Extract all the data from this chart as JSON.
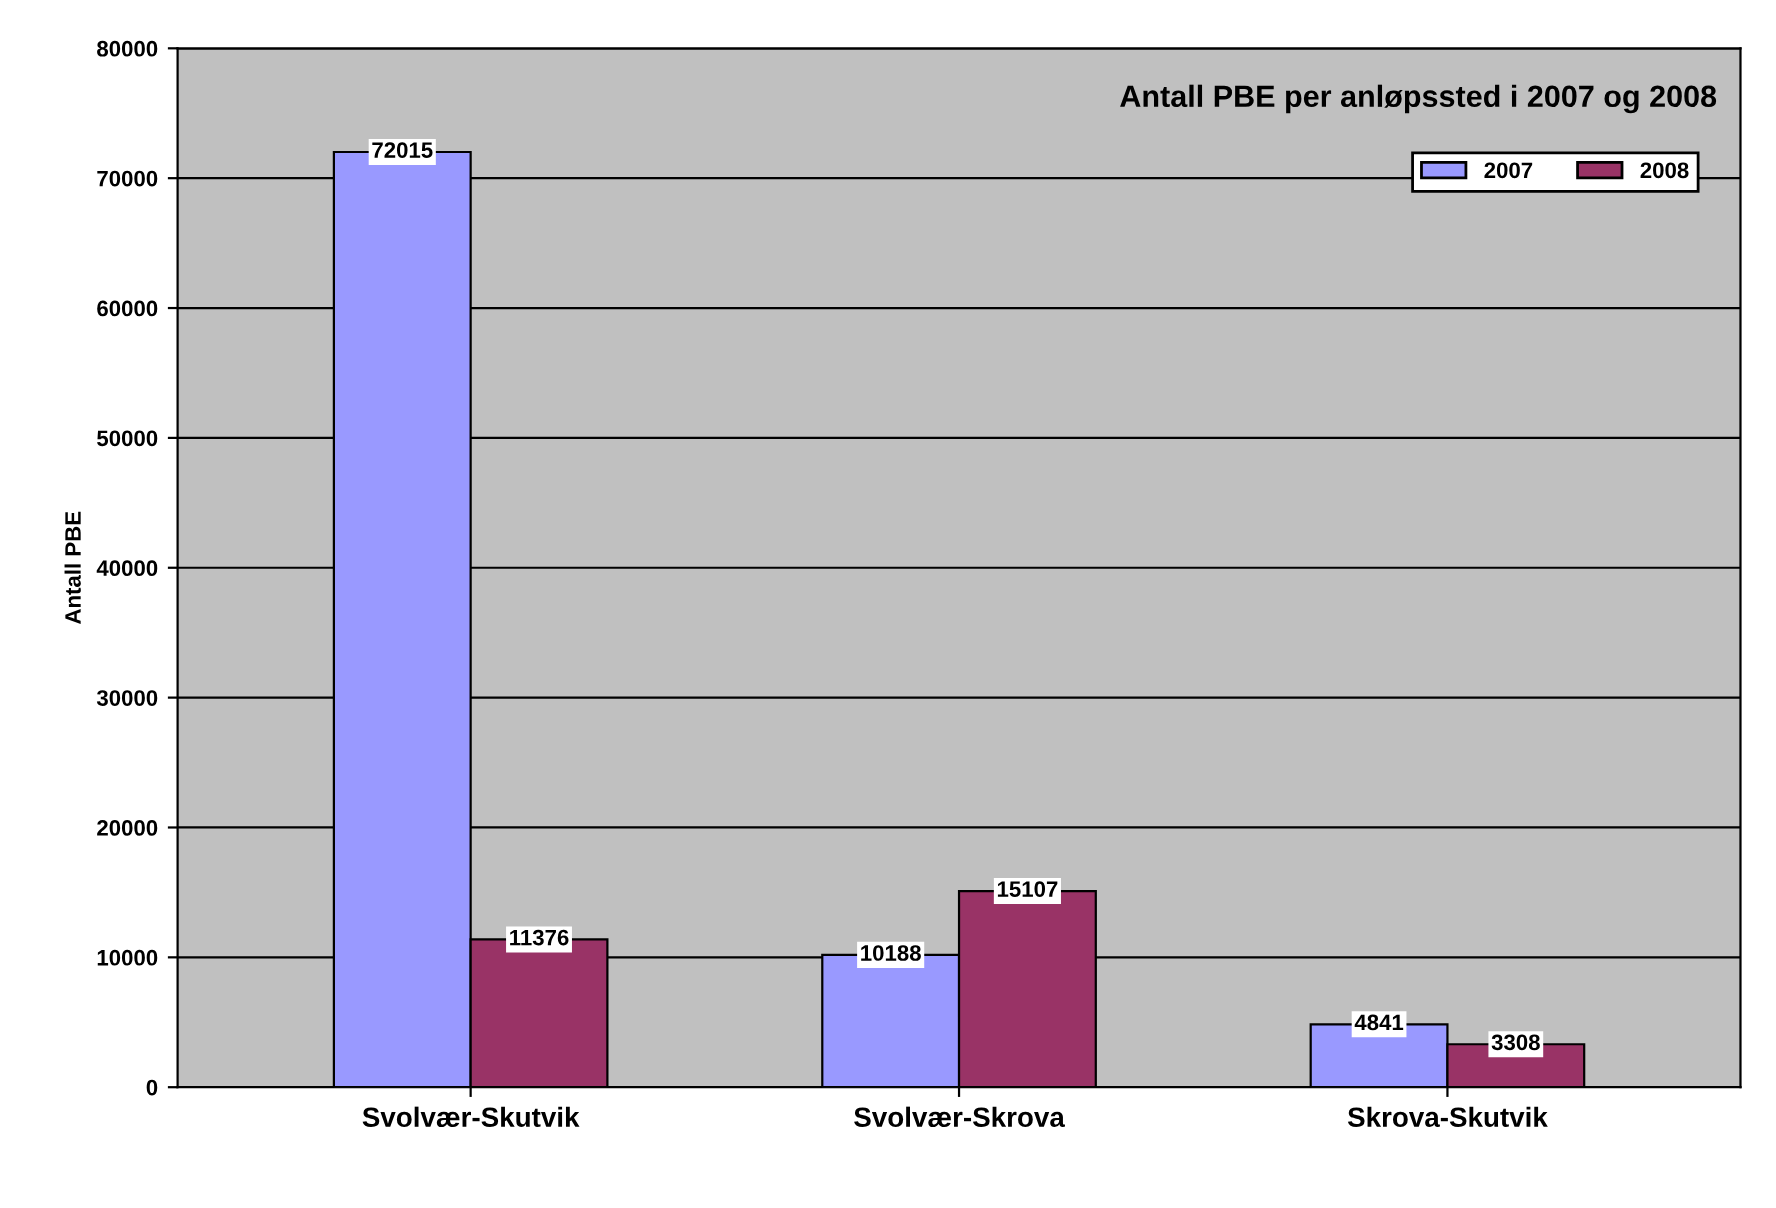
{
  "chart_data": {
    "type": "bar",
    "title": "Antall PBE per anløpssted i 2007 og 2008",
    "ylabel": "Antall PBE",
    "categories": [
      "Svolvær-Skutvik",
      "Svolvær-Skrova",
      "Skrova-Skutvik"
    ],
    "series": [
      {
        "name": "2007",
        "color": "#9999ff",
        "values": [
          72015,
          10188,
          4841
        ]
      },
      {
        "name": "2008",
        "color": "#993366",
        "values": [
          11376,
          15107,
          3308
        ]
      }
    ],
    "ylim": [
      0,
      80000
    ],
    "yticks": [
      0,
      10000,
      20000,
      30000,
      40000,
      50000,
      60000,
      70000,
      80000
    ],
    "grid": "y",
    "legend": "top right",
    "data_labels": true
  }
}
